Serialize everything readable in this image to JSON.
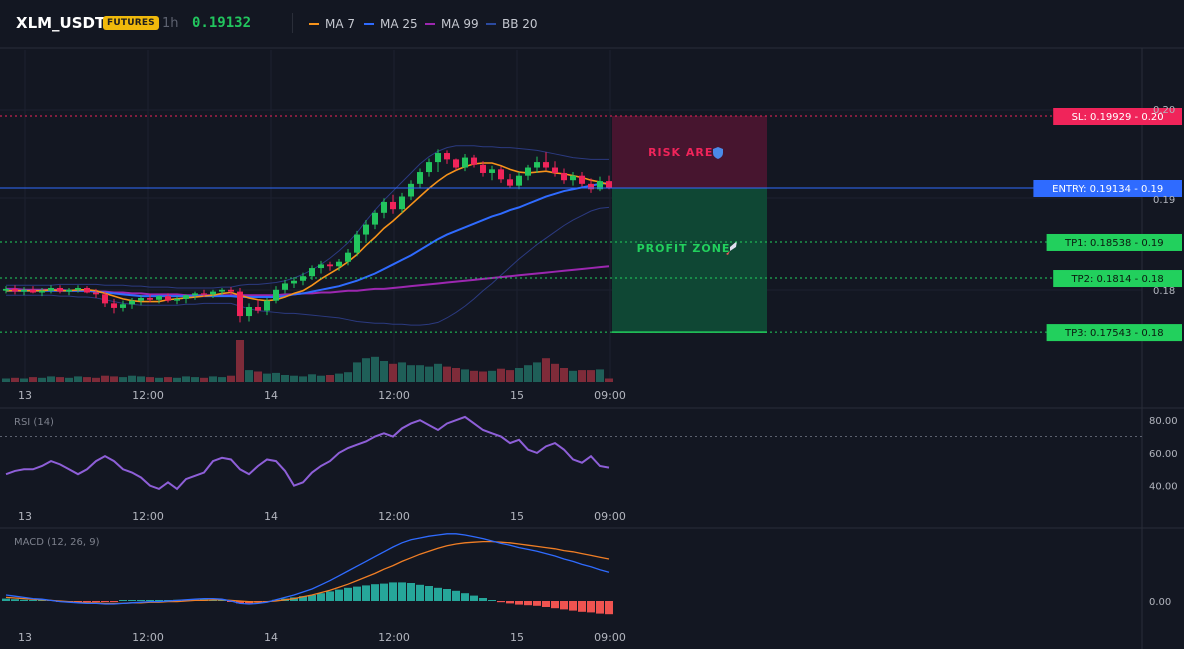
{
  "header": {
    "symbol": "XLM_USDT",
    "badge": "FUTURES",
    "interval": "1h",
    "price": "0.19132",
    "legend": [
      {
        "label": "MA 7",
        "color": "#f7931a"
      },
      {
        "label": "MA 25",
        "color": "#2f6bff"
      },
      {
        "label": "MA 99",
        "color": "#9c27b0"
      },
      {
        "label": "BB 20",
        "color": "#2b4aa0"
      }
    ]
  },
  "colors": {
    "up": "#22c55e",
    "down": "#f0245a",
    "up_volume": "#1f5f58",
    "down_volume": "#7e2b39",
    "ma7": "#f7931a",
    "ma25": "#2f6bff",
    "ma99": "#9c27b0",
    "bb": "#2b3a80",
    "rsi": "#8e5fd8",
    "macd": "#2f6bff",
    "signal": "#f07e25",
    "hist_up": "#26a69a",
    "hist_down": "#ef5350"
  },
  "chart_data": {
    "type": "candlestick",
    "x_tick_labels": [
      "13",
      "12:00",
      "14",
      "12:00",
      "15",
      "09:00"
    ],
    "y_tick_labels": [
      "0.20",
      "0.19",
      "0.18"
    ],
    "candles": [
      {
        "o": 0.18,
        "h": 0.1805,
        "l": 0.1797,
        "c": 0.1802
      },
      {
        "o": 0.1802,
        "h": 0.1806,
        "l": 0.1796,
        "c": 0.1799
      },
      {
        "o": 0.1799,
        "h": 0.1804,
        "l": 0.1795,
        "c": 0.1801
      },
      {
        "o": 0.1801,
        "h": 0.1805,
        "l": 0.1797,
        "c": 0.1798
      },
      {
        "o": 0.1798,
        "h": 0.1803,
        "l": 0.1794,
        "c": 0.18
      },
      {
        "o": 0.18,
        "h": 0.1806,
        "l": 0.1797,
        "c": 0.1803
      },
      {
        "o": 0.1803,
        "h": 0.1806,
        "l": 0.1797,
        "c": 0.1799
      },
      {
        "o": 0.1799,
        "h": 0.1803,
        "l": 0.1795,
        "c": 0.1801
      },
      {
        "o": 0.1801,
        "h": 0.1806,
        "l": 0.1798,
        "c": 0.1803
      },
      {
        "o": 0.1803,
        "h": 0.1805,
        "l": 0.1797,
        "c": 0.1798
      },
      {
        "o": 0.1798,
        "h": 0.1802,
        "l": 0.1792,
        "c": 0.1796
      },
      {
        "o": 0.1796,
        "h": 0.1799,
        "l": 0.1782,
        "c": 0.1786
      },
      {
        "o": 0.1786,
        "h": 0.1791,
        "l": 0.1775,
        "c": 0.1781
      },
      {
        "o": 0.1781,
        "h": 0.1789,
        "l": 0.1777,
        "c": 0.1785
      },
      {
        "o": 0.1785,
        "h": 0.1792,
        "l": 0.178,
        "c": 0.1789
      },
      {
        "o": 0.1789,
        "h": 0.1795,
        "l": 0.1784,
        "c": 0.1792
      },
      {
        "o": 0.1792,
        "h": 0.1796,
        "l": 0.1787,
        "c": 0.179
      },
      {
        "o": 0.179,
        "h": 0.1795,
        "l": 0.1786,
        "c": 0.1794
      },
      {
        "o": 0.1794,
        "h": 0.1797,
        "l": 0.1787,
        "c": 0.1789
      },
      {
        "o": 0.1789,
        "h": 0.1794,
        "l": 0.1785,
        "c": 0.1791
      },
      {
        "o": 0.1791,
        "h": 0.1796,
        "l": 0.1786,
        "c": 0.1795
      },
      {
        "o": 0.1795,
        "h": 0.1799,
        "l": 0.179,
        "c": 0.1797
      },
      {
        "o": 0.1797,
        "h": 0.1801,
        "l": 0.1793,
        "c": 0.1796
      },
      {
        "o": 0.1796,
        "h": 0.1801,
        "l": 0.1792,
        "c": 0.1799
      },
      {
        "o": 0.1799,
        "h": 0.1803,
        "l": 0.1795,
        "c": 0.1801
      },
      {
        "o": 0.1801,
        "h": 0.1804,
        "l": 0.1795,
        "c": 0.1799
      },
      {
        "o": 0.1799,
        "h": 0.1803,
        "l": 0.1765,
        "c": 0.1772
      },
      {
        "o": 0.1772,
        "h": 0.1786,
        "l": 0.1766,
        "c": 0.1782
      },
      {
        "o": 0.1782,
        "h": 0.179,
        "l": 0.1775,
        "c": 0.1778
      },
      {
        "o": 0.1778,
        "h": 0.1792,
        "l": 0.1773,
        "c": 0.1789
      },
      {
        "o": 0.1789,
        "h": 0.1805,
        "l": 0.1786,
        "c": 0.1801
      },
      {
        "o": 0.1801,
        "h": 0.1812,
        "l": 0.1797,
        "c": 0.1808
      },
      {
        "o": 0.1808,
        "h": 0.1815,
        "l": 0.1803,
        "c": 0.1811
      },
      {
        "o": 0.1811,
        "h": 0.182,
        "l": 0.1806,
        "c": 0.1816
      },
      {
        "o": 0.1816,
        "h": 0.1828,
        "l": 0.1812,
        "c": 0.1825
      },
      {
        "o": 0.1825,
        "h": 0.1833,
        "l": 0.1819,
        "c": 0.1829
      },
      {
        "o": 0.1829,
        "h": 0.1832,
        "l": 0.1822,
        "c": 0.1827
      },
      {
        "o": 0.1827,
        "h": 0.1835,
        "l": 0.1822,
        "c": 0.1832
      },
      {
        "o": 0.1832,
        "h": 0.1846,
        "l": 0.1828,
        "c": 0.1842
      },
      {
        "o": 0.1842,
        "h": 0.1866,
        "l": 0.1838,
        "c": 0.1862
      },
      {
        "o": 0.1862,
        "h": 0.1878,
        "l": 0.1855,
        "c": 0.1873
      },
      {
        "o": 0.1873,
        "h": 0.1889,
        "l": 0.1868,
        "c": 0.1886
      },
      {
        "o": 0.1886,
        "h": 0.1902,
        "l": 0.188,
        "c": 0.1898
      },
      {
        "o": 0.1898,
        "h": 0.1906,
        "l": 0.1885,
        "c": 0.189
      },
      {
        "o": 0.189,
        "h": 0.1908,
        "l": 0.1886,
        "c": 0.1904
      },
      {
        "o": 0.1904,
        "h": 0.1922,
        "l": 0.19,
        "c": 0.1918
      },
      {
        "o": 0.1918,
        "h": 0.1935,
        "l": 0.1913,
        "c": 0.1931
      },
      {
        "o": 0.1931,
        "h": 0.1946,
        "l": 0.1926,
        "c": 0.1942
      },
      {
        "o": 0.1942,
        "h": 0.1956,
        "l": 0.1931,
        "c": 0.1952
      },
      {
        "o": 0.1952,
        "h": 0.1955,
        "l": 0.194,
        "c": 0.1945
      },
      {
        "o": 0.1945,
        "h": 0.1946,
        "l": 0.1933,
        "c": 0.1936
      },
      {
        "o": 0.1936,
        "h": 0.1951,
        "l": 0.1932,
        "c": 0.1947
      },
      {
        "o": 0.1947,
        "h": 0.195,
        "l": 0.1936,
        "c": 0.1939
      },
      {
        "o": 0.1939,
        "h": 0.1943,
        "l": 0.1926,
        "c": 0.193
      },
      {
        "o": 0.193,
        "h": 0.1938,
        "l": 0.1922,
        "c": 0.1934
      },
      {
        "o": 0.1934,
        "h": 0.1937,
        "l": 0.1919,
        "c": 0.1923
      },
      {
        "o": 0.1923,
        "h": 0.1929,
        "l": 0.1913,
        "c": 0.1916
      },
      {
        "o": 0.1916,
        "h": 0.1931,
        "l": 0.1912,
        "c": 0.1927
      },
      {
        "o": 0.1927,
        "h": 0.1939,
        "l": 0.1922,
        "c": 0.1936
      },
      {
        "o": 0.1936,
        "h": 0.1948,
        "l": 0.193,
        "c": 0.1942
      },
      {
        "o": 0.1942,
        "h": 0.1953,
        "l": 0.1933,
        "c": 0.1936
      },
      {
        "o": 0.1936,
        "h": 0.1943,
        "l": 0.1926,
        "c": 0.193
      },
      {
        "o": 0.193,
        "h": 0.1935,
        "l": 0.1918,
        "c": 0.1922
      },
      {
        "o": 0.1922,
        "h": 0.1931,
        "l": 0.1916,
        "c": 0.1927
      },
      {
        "o": 0.1927,
        "h": 0.1931,
        "l": 0.1915,
        "c": 0.1918
      },
      {
        "o": 0.1918,
        "h": 0.1924,
        "l": 0.1908,
        "c": 0.1912
      },
      {
        "o": 0.1912,
        "h": 0.1926,
        "l": 0.191,
        "c": 0.1921
      },
      {
        "o": 0.1921,
        "h": 0.1927,
        "l": 0.1912,
        "c": 0.1913
      }
    ],
    "volume": [
      5,
      6,
      5,
      7,
      6,
      8,
      7,
      6,
      8,
      7,
      6,
      9,
      8,
      7,
      9,
      8,
      7,
      6,
      7,
      6,
      8,
      7,
      6,
      8,
      7,
      9,
      60,
      17,
      15,
      12,
      13,
      10,
      9,
      8,
      11,
      9,
      10,
      12,
      14,
      28,
      34,
      36,
      30,
      26,
      28,
      24,
      24,
      22,
      26,
      22,
      20,
      18,
      16,
      15,
      16,
      19,
      17,
      20,
      24,
      28,
      34,
      26,
      20,
      16,
      17,
      17,
      18,
      5
    ],
    "ma7": [
      0.18,
      0.18,
      0.18,
      0.18,
      0.18,
      0.1801,
      0.18,
      0.18,
      0.1801,
      0.1801,
      0.18,
      0.1797,
      0.1794,
      0.1791,
      0.1789,
      0.1788,
      0.1788,
      0.1788,
      0.179,
      0.1791,
      0.1792,
      0.1793,
      0.1794,
      0.1795,
      0.1797,
      0.1798,
      0.1795,
      0.1792,
      0.179,
      0.1789,
      0.179,
      0.1793,
      0.1797,
      0.18,
      0.1806,
      0.1813,
      0.1819,
      0.1825,
      0.1832,
      0.184,
      0.185,
      0.1859,
      0.1869,
      0.1877,
      0.1886,
      0.1895,
      0.1904,
      0.1913,
      0.1921,
      0.1928,
      0.1933,
      0.1937,
      0.194,
      0.1941,
      0.1941,
      0.1938,
      0.1934,
      0.1931,
      0.193,
      0.1931,
      0.1932,
      0.193,
      0.1929,
      0.1927,
      0.1925,
      0.1922,
      0.192,
      0.1917
    ],
    "ma25": [
      0.18,
      0.18,
      0.18,
      0.18,
      0.18,
      0.18,
      0.18,
      0.18,
      0.18,
      0.18,
      0.1799,
      0.1798,
      0.1797,
      0.1796,
      0.1795,
      0.1794,
      0.1794,
      0.1794,
      0.1794,
      0.1794,
      0.1794,
      0.1794,
      0.1794,
      0.1794,
      0.1794,
      0.1794,
      0.1793,
      0.1793,
      0.1793,
      0.1793,
      0.1793,
      0.1794,
      0.1796,
      0.1797,
      0.1799,
      0.1801,
      0.1803,
      0.1805,
      0.1808,
      0.1811,
      0.1815,
      0.1819,
      0.1824,
      0.1829,
      0.1834,
      0.1839,
      0.1845,
      0.1851,
      0.1857,
      0.1862,
      0.1866,
      0.187,
      0.1874,
      0.1878,
      0.1882,
      0.1885,
      0.1889,
      0.1892,
      0.1896,
      0.19,
      0.1904,
      0.1907,
      0.191,
      0.1912,
      0.1914,
      0.1916,
      0.1918,
      0.1919
    ],
    "ma99": [
      0.1802,
      0.1802,
      0.1801,
      0.1801,
      0.1801,
      0.1801,
      0.1801,
      0.18,
      0.18,
      0.18,
      0.1799,
      0.1799,
      0.1798,
      0.1798,
      0.1797,
      0.1797,
      0.1796,
      0.1796,
      0.1796,
      0.1796,
      0.1795,
      0.1795,
      0.1795,
      0.1795,
      0.1795,
      0.1795,
      0.1795,
      0.1795,
      0.1795,
      0.1795,
      0.1795,
      0.1796,
      0.1796,
      0.1797,
      0.1797,
      0.1798,
      0.1798,
      0.1799,
      0.18,
      0.18,
      0.1801,
      0.1802,
      0.1802,
      0.1803,
      0.1804,
      0.1805,
      0.1806,
      0.1807,
      0.1808,
      0.1809,
      0.181,
      0.1811,
      0.1812,
      0.1813,
      0.1814,
      0.1815,
      0.1816,
      0.1817,
      0.1818,
      0.1819,
      0.182,
      0.1821,
      0.1822,
      0.1823,
      0.1824,
      0.1825,
      0.1826,
      0.1827
    ],
    "bb_upper": [
      0.1806,
      0.1806,
      0.1806,
      0.1806,
      0.1806,
      0.1806,
      0.1807,
      0.1807,
      0.1807,
      0.1807,
      0.1807,
      0.1806,
      0.1806,
      0.1806,
      0.1805,
      0.1805,
      0.1804,
      0.1804,
      0.1804,
      0.1803,
      0.1803,
      0.1803,
      0.1803,
      0.1803,
      0.1804,
      0.1804,
      0.1806,
      0.1807,
      0.1807,
      0.1808,
      0.1809,
      0.1811,
      0.1814,
      0.1818,
      0.1823,
      0.1829,
      0.1836,
      0.1844,
      0.1853,
      0.1864,
      0.1877,
      0.1889,
      0.19,
      0.191,
      0.192,
      0.193,
      0.194,
      0.1948,
      0.1954,
      0.1958,
      0.196,
      0.196,
      0.196,
      0.1959,
      0.1959,
      0.1958,
      0.1958,
      0.1957,
      0.1956,
      0.1955,
      0.1953,
      0.1951,
      0.1949,
      0.1947,
      0.1946,
      0.1945,
      0.1945,
      0.1945
    ],
    "bb_lower": [
      0.1795,
      0.1795,
      0.1795,
      0.1795,
      0.1795,
      0.1795,
      0.1794,
      0.1794,
      0.1793,
      0.1793,
      0.1792,
      0.179,
      0.1788,
      0.1786,
      0.1785,
      0.1784,
      0.1784,
      0.1784,
      0.1784,
      0.1784,
      0.1785,
      0.1785,
      0.1786,
      0.1786,
      0.1786,
      0.1786,
      0.1783,
      0.178,
      0.1778,
      0.1777,
      0.1776,
      0.1775,
      0.1775,
      0.1774,
      0.1773,
      0.1772,
      0.1771,
      0.177,
      0.1768,
      0.1766,
      0.1765,
      0.1764,
      0.1764,
      0.1763,
      0.1763,
      0.1762,
      0.1762,
      0.1763,
      0.1765,
      0.177,
      0.1776,
      0.1783,
      0.1791,
      0.18,
      0.1808,
      0.1817,
      0.1826,
      0.1835,
      0.1843,
      0.1851,
      0.1858,
      0.1865,
      0.1872,
      0.1878,
      0.1883,
      0.1888,
      0.1891,
      0.1892
    ],
    "risk_area": {
      "label": "RISK AREA",
      "icon": "shield-icon",
      "top": 0.19929,
      "bottom": 0.19134
    },
    "profit_zone": {
      "label": "PROFIT ZONE",
      "icon": "rocket-icon",
      "top": 0.19134,
      "bottom": 0.17543
    },
    "levels": [
      {
        "label": "SL: 0.19929 - 0.20",
        "value": 0.19929,
        "color": "#f0245a",
        "text_color": "#ffffff",
        "style": "dotted"
      },
      {
        "label": "ENTRY: 0.19134 - 0.19",
        "value": 0.19134,
        "color": "#2f6bff",
        "text_color": "#ffffff",
        "style": "solid"
      },
      {
        "label": "TP1: 0.18538 - 0.19",
        "value": 0.18538,
        "color": "#22d05d",
        "text_color": "#0b1a10",
        "style": "dotted"
      },
      {
        "label": "TP2: 0.1814 - 0.18",
        "value": 0.1814,
        "color": "#22d05d",
        "text_color": "#0b1a10",
        "style": "dotted"
      },
      {
        "label": "TP3: 0.17543 - 0.18",
        "value": 0.17543,
        "color": "#22d05d",
        "text_color": "#0b1a10",
        "style": "dotted"
      }
    ],
    "rsi": {
      "label": "RSI (14)",
      "ticks": [
        "80.00",
        "60.00",
        "40.00"
      ],
      "values": [
        47,
        49,
        50,
        50,
        52,
        55,
        53,
        50,
        47,
        50,
        55,
        58,
        55,
        50,
        48,
        45,
        40,
        38,
        42,
        38,
        44,
        46,
        48,
        55,
        57,
        56,
        50,
        47,
        52,
        56,
        55,
        49,
        40,
        42,
        48,
        52,
        55,
        60,
        63,
        65,
        67,
        70,
        72,
        70,
        75,
        78,
        80,
        77,
        74,
        78,
        80,
        82,
        78,
        74,
        72,
        70,
        66,
        68,
        62,
        60,
        64,
        66,
        62,
        56,
        54,
        58,
        52,
        51
      ],
      "ylim": [
        30,
        85
      ],
      "level_line": 70
    },
    "macd": {
      "label": "MACD (12, 26, 9)",
      "ticks": [
        "0.00"
      ],
      "macd": [
        0.0001,
        8e-05,
        6e-05,
        4e-05,
        3e-05,
        1e-05,
        -1e-05,
        -2e-05,
        -3e-05,
        -4e-05,
        -4e-05,
        -5e-05,
        -5e-05,
        -4e-05,
        -3e-05,
        -2e-05,
        -1e-05,
        -1e-05,
        0.0,
        1e-05,
        2e-05,
        3e-05,
        4e-05,
        4e-05,
        3e-05,
        0.0,
        -4e-05,
        -5e-05,
        -4e-05,
        -2e-05,
        2e-05,
        6e-05,
        0.0001,
        0.00015,
        0.0002,
        0.00027,
        0.00034,
        0.00042,
        0.0005,
        0.00058,
        0.00066,
        0.00074,
        0.00082,
        0.0009,
        0.00097,
        0.00102,
        0.00105,
        0.00108,
        0.0011,
        0.00112,
        0.00112,
        0.0011,
        0.00107,
        0.00104,
        0.001,
        0.00096,
        0.00093,
        0.00089,
        0.00086,
        0.00083,
        0.00079,
        0.00075,
        0.0007,
        0.00066,
        0.00061,
        0.00057,
        0.00052,
        0.00048
      ],
      "signal": [
        6e-05,
        5e-05,
        4e-05,
        3e-05,
        2e-05,
        1e-05,
        0.0,
        -1e-05,
        -2e-05,
        -3e-05,
        -3e-05,
        -4e-05,
        -4e-05,
        -4e-05,
        -3e-05,
        -3e-05,
        -2e-05,
        -2e-05,
        -1e-05,
        -1e-05,
        0.0,
        1e-05,
        1e-05,
        2e-05,
        2e-05,
        1e-05,
        0.0,
        -1e-05,
        -2e-05,
        -1e-05,
        0.0,
        2e-05,
        4e-05,
        7e-05,
        0.0001,
        0.00014,
        0.00018,
        0.00023,
        0.00028,
        0.00034,
        0.0004,
        0.00046,
        0.00053,
        0.00059,
        0.00066,
        0.00072,
        0.00078,
        0.00083,
        0.00088,
        0.00092,
        0.00095,
        0.00097,
        0.00098,
        0.00099,
        0.00099,
        0.00098,
        0.00097,
        0.00095,
        0.00093,
        0.00091,
        0.00089,
        0.00087,
        0.00084,
        0.00082,
        0.00079,
        0.00076,
        0.00073,
        0.0007
      ],
      "histogram": [
        4e-05,
        3e-05,
        2e-05,
        1e-05,
        1e-05,
        0.0,
        -1e-05,
        -1e-05,
        -1e-05,
        -1e-05,
        -1e-05,
        -1e-05,
        -1e-05,
        0.0,
        0.0,
        1e-05,
        1e-05,
        1e-05,
        1e-05,
        2e-05,
        2e-05,
        2e-05,
        3e-05,
        2e-05,
        1e-05,
        -1e-05,
        -4e-05,
        -4e-05,
        -2e-05,
        -1e-05,
        2e-05,
        4e-05,
        6e-05,
        8e-05,
        0.0001,
        0.00013,
        0.00016,
        0.00019,
        0.00022,
        0.00024,
        0.00026,
        0.00028,
        0.00029,
        0.00031,
        0.00031,
        0.0003,
        0.00027,
        0.00025,
        0.00022,
        0.0002,
        0.00017,
        0.00013,
        9e-05,
        5e-05,
        1e-05,
        -2e-05,
        -4e-05,
        -6e-05,
        -7e-05,
        -8e-05,
        -0.0001,
        -0.00012,
        -0.00014,
        -0.00016,
        -0.00018,
        -0.00019,
        -0.00021,
        -0.00022
      ]
    }
  }
}
